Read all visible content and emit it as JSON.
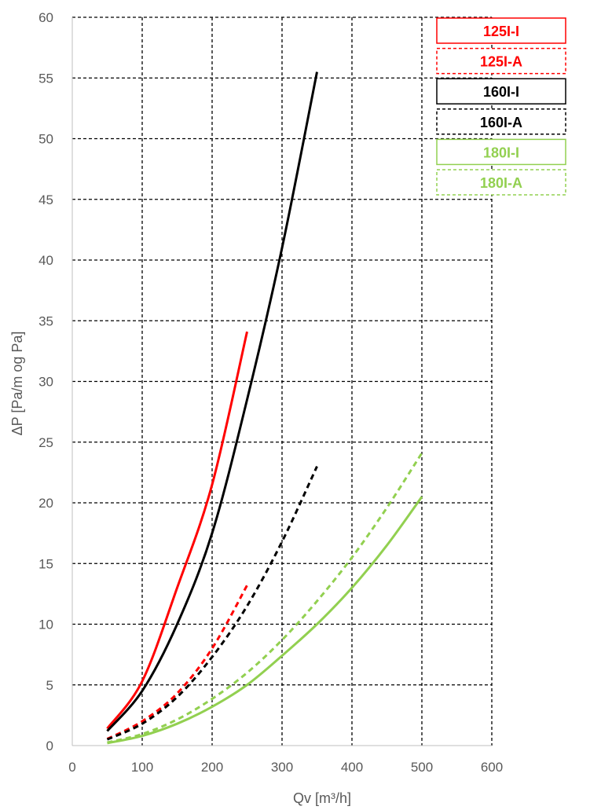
{
  "chart_data": {
    "type": "line",
    "xlabel": "Qv [m³/h]",
    "ylabel": "ΔP [Pa/m og  Pa]",
    "xlim": [
      0,
      600
    ],
    "ylim": [
      0,
      60
    ],
    "xticks": [
      0,
      100,
      200,
      300,
      400,
      500,
      600
    ],
    "yticks": [
      0,
      5,
      10,
      15,
      20,
      25,
      30,
      35,
      40,
      45,
      50,
      55,
      60
    ],
    "xtick_labels": [
      "0",
      "100",
      "200",
      "300",
      "400",
      "500",
      "600"
    ],
    "ytick_labels": [
      "0",
      "5",
      "10",
      "15",
      "20",
      "25",
      "30",
      "35",
      "40",
      "45",
      "50",
      "55",
      "60"
    ],
    "grid": true,
    "grid_style": "dashed",
    "legend_position": "top-right",
    "series": [
      {
        "name": "125I-I",
        "color": "#ff0000",
        "dashed": false,
        "x": [
          50,
          100,
          150,
          200,
          250
        ],
        "y": [
          1.4,
          5.3,
          13.0,
          21.5,
          34.1
        ]
      },
      {
        "name": "125I-A",
        "color": "#ff0000",
        "dashed": true,
        "x": [
          50,
          100,
          150,
          200,
          250
        ],
        "y": [
          0.55,
          2.0,
          4.3,
          8.0,
          13.2
        ]
      },
      {
        "name": "160I-I",
        "color": "#000000",
        "dashed": false,
        "x": [
          50,
          100,
          150,
          200,
          250,
          300,
          350
        ],
        "y": [
          1.2,
          4.5,
          10.0,
          17.5,
          28.5,
          41.0,
          55.5
        ]
      },
      {
        "name": "160I-A",
        "color": "#000000",
        "dashed": true,
        "x": [
          50,
          100,
          150,
          200,
          250,
          300,
          350
        ],
        "y": [
          0.5,
          1.8,
          4.0,
          7.3,
          11.5,
          16.8,
          23.0
        ]
      },
      {
        "name": "180I-I",
        "color": "#92d050",
        "dashed": false,
        "x": [
          50,
          100,
          150,
          200,
          250,
          300,
          350,
          400,
          450,
          500
        ],
        "y": [
          0.2,
          0.8,
          1.8,
          3.2,
          5.0,
          7.4,
          10.0,
          13.0,
          16.5,
          20.5
        ]
      },
      {
        "name": "180I-A",
        "color": "#92d050",
        "dashed": true,
        "x": [
          50,
          100,
          150,
          200,
          250,
          300,
          350,
          400,
          450,
          500
        ],
        "y": [
          0.25,
          0.95,
          2.15,
          3.85,
          6.0,
          8.7,
          11.9,
          15.5,
          19.6,
          24.1
        ]
      }
    ]
  }
}
